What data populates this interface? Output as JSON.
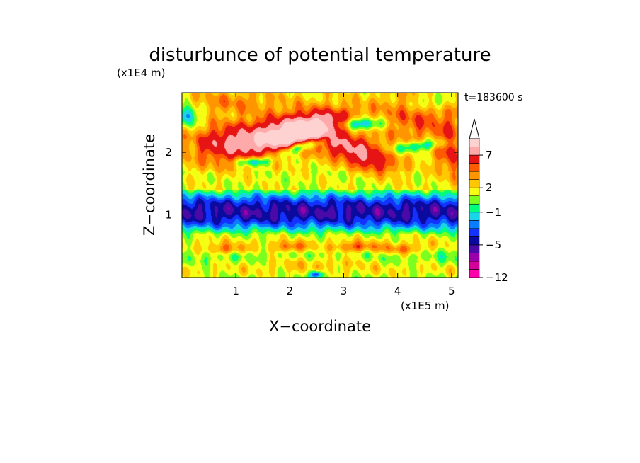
{
  "chart_data": {
    "type": "heatmap",
    "title": "disturbunce of potential temperature",
    "xlabel": "X−coordinate",
    "ylabel": "Z−coordinate",
    "x_unit": "(x1E5 m)",
    "y_unit": "(x1E4 m)",
    "time_label": "t=183600 s",
    "x_unit_scale": 100000,
    "y_unit_scale": 10000,
    "xlim": [
      0,
      5.12
    ],
    "ylim": [
      0,
      2.95
    ],
    "xticks": [
      1,
      2,
      3,
      4,
      5
    ],
    "yticks": [
      1,
      2
    ],
    "colorbar": {
      "labels": [
        {
          "text": "7",
          "value": 7
        },
        {
          "text": "2",
          "value": 2
        },
        {
          "text": "−1",
          "value": -1
        },
        {
          "text": "−5",
          "value": -5
        },
        {
          "text": "−12",
          "value": -12
        }
      ],
      "levels": [
        -12,
        -10,
        -8,
        -6,
        -5,
        -4,
        -3,
        -2,
        -1,
        0,
        1,
        2,
        3,
        4,
        5,
        7,
        9,
        11,
        13
      ],
      "colors": [
        "#ff00aa",
        "#d4009a",
        "#9900aa",
        "#4b0aa8",
        "#0a0a9e",
        "#1432ff",
        "#0a7dff",
        "#19d6e6",
        "#00ff7a",
        "#7aff1e",
        "#f5ff14",
        "#ffc800",
        "#ff9600",
        "#ff5a00",
        "#e61414",
        "#ffaaaa",
        "#ffd2d2"
      ],
      "extend": "max"
    },
    "features": [
      {
        "x": 2.3,
        "z": 2.35,
        "sx": 0.55,
        "sz": 0.16,
        "tilt": 0.22,
        "amp": 7.5
      },
      {
        "x": 1.6,
        "z": 2.25,
        "sx": 0.7,
        "sz": 0.22,
        "tilt": 0.25,
        "amp": 4.5
      },
      {
        "x": 0.75,
        "z": 2.2,
        "sx": 0.5,
        "sz": 0.2,
        "tilt": 0.1,
        "amp": 3.5
      },
      {
        "x": 3.05,
        "z": 2.1,
        "sx": 0.55,
        "sz": 0.18,
        "tilt": -0.2,
        "amp": 4.5
      },
      {
        "x": 3.5,
        "z": 1.85,
        "sx": 0.35,
        "sz": 0.12,
        "tilt": -0.3,
        "amp": 3.0
      },
      {
        "x": 4.4,
        "z": 2.55,
        "sx": 0.55,
        "sz": 0.3,
        "tilt": 0.0,
        "amp": 3.0
      },
      {
        "x": 5.0,
        "z": 2.0,
        "sx": 0.2,
        "sz": 0.3,
        "tilt": 0.0,
        "amp": 3.5
      },
      {
        "x": 0.9,
        "z": 2.8,
        "sx": 0.7,
        "sz": 0.14,
        "tilt": 0.0,
        "amp": 2.0
      },
      {
        "x": 3.3,
        "z": 2.45,
        "sx": 0.28,
        "sz": 0.07,
        "tilt": 0.0,
        "amp": -5.5
      },
      {
        "x": 2.25,
        "z": 2.1,
        "sx": 0.3,
        "sz": 0.06,
        "tilt": 0.25,
        "amp": -5.5
      },
      {
        "x": 1.35,
        "z": 1.85,
        "sx": 0.2,
        "sz": 0.05,
        "tilt": 0.0,
        "amp": -5.0
      },
      {
        "x": 4.4,
        "z": 2.1,
        "sx": 0.35,
        "sz": 0.06,
        "tilt": 0.1,
        "amp": -4.0
      },
      {
        "x": 0.1,
        "z": 2.6,
        "sx": 0.15,
        "sz": 0.12,
        "tilt": 0.0,
        "amp": -4.5
      },
      {
        "x": 4.6,
        "z": 2.8,
        "sx": 0.25,
        "sz": 0.1,
        "tilt": 0.0,
        "amp": -3.0
      },
      {
        "x": 2.0,
        "z": 0.48,
        "sx": 0.25,
        "sz": 0.06,
        "tilt": 0.0,
        "amp": 3.0
      },
      {
        "x": 3.2,
        "z": 0.48,
        "sx": 0.3,
        "sz": 0.06,
        "tilt": 0.0,
        "amp": 3.2
      },
      {
        "x": 0.8,
        "z": 0.45,
        "sx": 0.3,
        "sz": 0.06,
        "tilt": 0.0,
        "amp": 2.8
      },
      {
        "x": 4.1,
        "z": 0.45,
        "sx": 0.3,
        "sz": 0.06,
        "tilt": 0.0,
        "amp": 2.8
      },
      {
        "x": 2.5,
        "z": 0.25,
        "sx": 0.8,
        "sz": 0.08,
        "tilt": 0.0,
        "amp": 1.5
      },
      {
        "x": 2.5,
        "z": 0.05,
        "sx": 0.08,
        "sz": 0.04,
        "tilt": 0.0,
        "amp": -6.0
      }
    ]
  }
}
